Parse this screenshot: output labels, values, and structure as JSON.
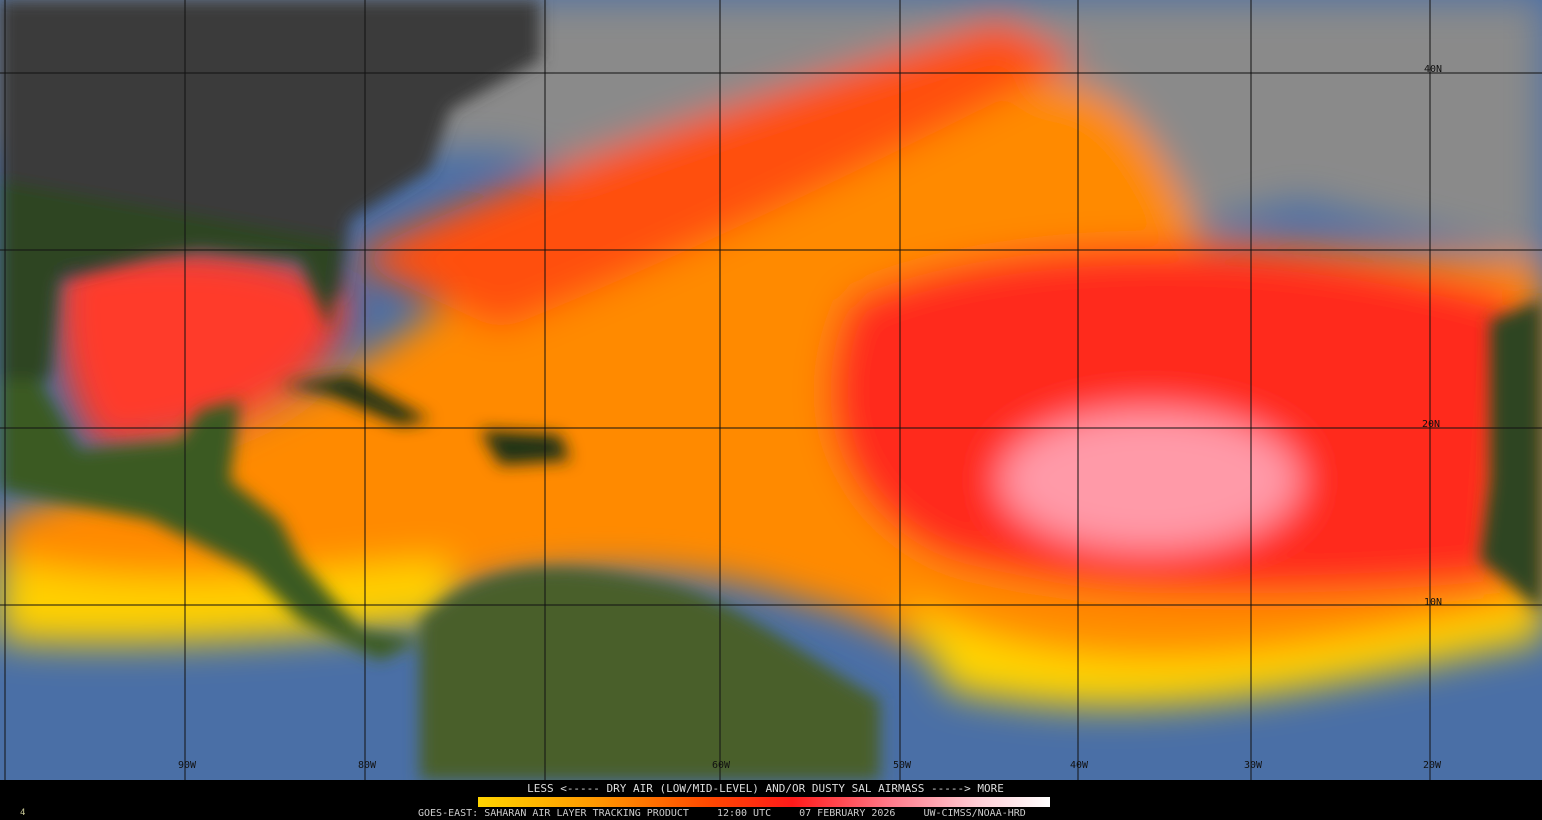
{
  "legend": {
    "title": "LESS <----- DRY AIR (LOW/MID-LEVEL) AND/OR DUSTY SAL AIRMASS -----> MORE",
    "colors": [
      "#ffd400",
      "#ff9a00",
      "#ff4a00",
      "#ff1a1a",
      "#ff7a8a",
      "#ffd0d8",
      "#ffffff"
    ]
  },
  "footer": {
    "product": "GOES-EAST: SAHARAN AIR LAYER TRACKING PRODUCT",
    "time": "12:00 UTC",
    "date": "07 FEBRUARY 2026",
    "credit": "UW-CIMSS/NOAA-HRD"
  },
  "frame_number": "4",
  "longitude_labels": [
    "90W",
    "80W",
    "60W",
    "50W",
    "40W",
    "30W",
    "20W"
  ],
  "latitude_labels": [
    "40N",
    "20N",
    "10N"
  ]
}
